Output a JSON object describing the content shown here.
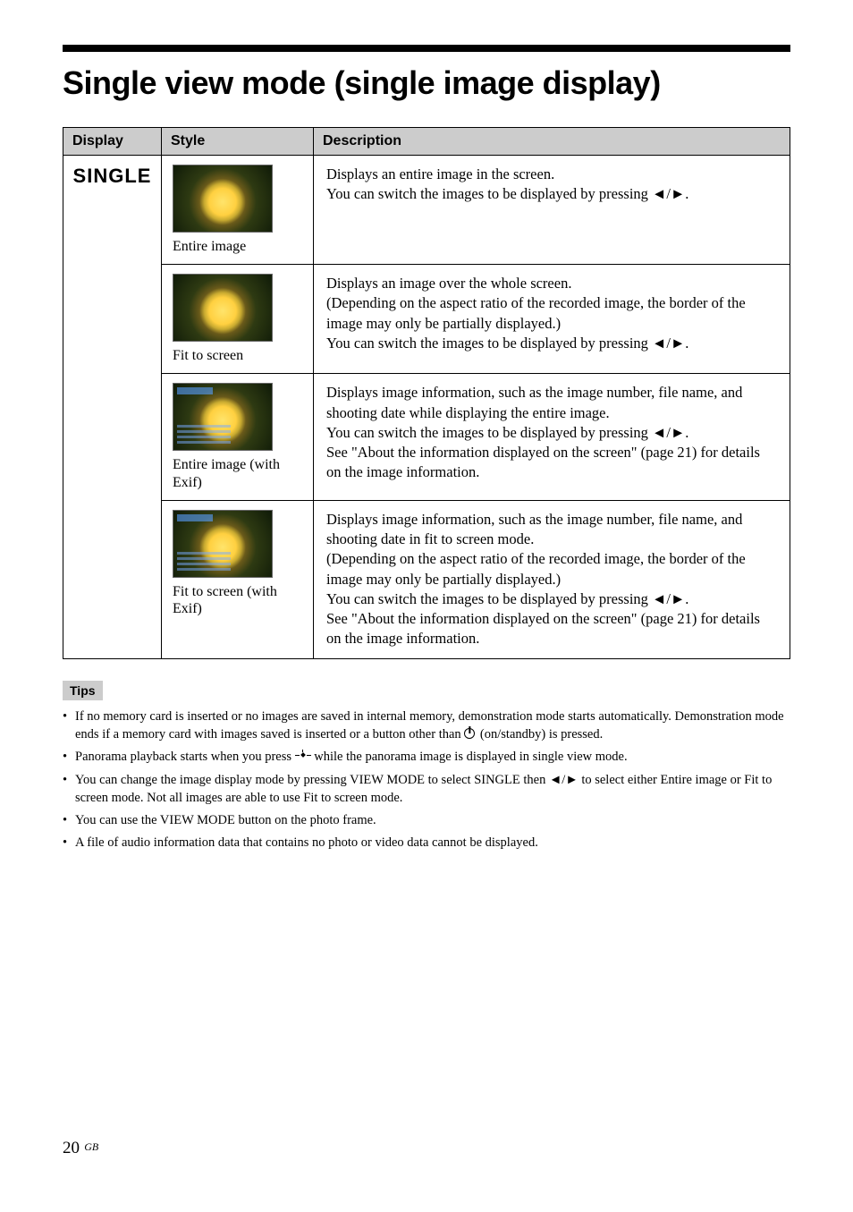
{
  "title": "Single view mode (single image display)",
  "table": {
    "headers": {
      "display": "Display",
      "style": "Style",
      "description": "Description"
    },
    "display_label": "SINGLE",
    "rows": [
      {
        "style_caption": "Entire image",
        "desc_line1": "Displays an entire image in the screen.",
        "desc_line2": "You can switch the images to be displayed by pressing ◄/►."
      },
      {
        "style_caption": "Fit to screen",
        "desc_line1": "Displays an image over the whole screen.",
        "desc_line2": "(Depending on the aspect ratio of the recorded image, the border of the image may only be partially displayed.)",
        "desc_line3": "You can switch the images to be displayed by pressing ◄/►."
      },
      {
        "style_caption": "Entire image (with Exif)",
        "desc_line1": "Displays image information, such as the image number, file name, and shooting date while displaying the entire image.",
        "desc_line2": "You can switch the images to be displayed by pressing ◄/►.",
        "desc_line3": "See \"About the information displayed on the screen\" (page 21) for details on the image information."
      },
      {
        "style_caption": "Fit to screen (with Exif)",
        "desc_line1": "Displays image information, such as the image number, file name, and shooting date in fit to screen mode.",
        "desc_line2": "(Depending on the aspect ratio of the recorded image, the border of the image may only be partially displayed.)",
        "desc_line3": "You can switch the images to be displayed by pressing ◄/►.",
        "desc_line4": "See \"About the information displayed on the screen\" (page 21) for details on the image information."
      }
    ]
  },
  "tips_label": "Tips",
  "tips": {
    "t1a": "If no memory card is inserted or no images are saved in internal memory, demonstration mode starts automatically. Demonstration mode ends if a memory card with images saved is inserted or a button other than ",
    "t1b": " (on/standby) is pressed.",
    "t2a": "Panorama playback starts when you press ",
    "t2b": " while the panorama image is displayed in single view mode.",
    "t3": "You can change the image display mode by pressing VIEW MODE to select SINGLE then ◄/► to select either Entire image or Fit to screen mode. Not all images are able to use Fit to screen mode.",
    "t4": "You can use the VIEW MODE button on the photo frame.",
    "t5": "A file of audio information data that contains no photo or video data cannot be displayed."
  },
  "footer": {
    "page": "20",
    "region": "GB"
  }
}
